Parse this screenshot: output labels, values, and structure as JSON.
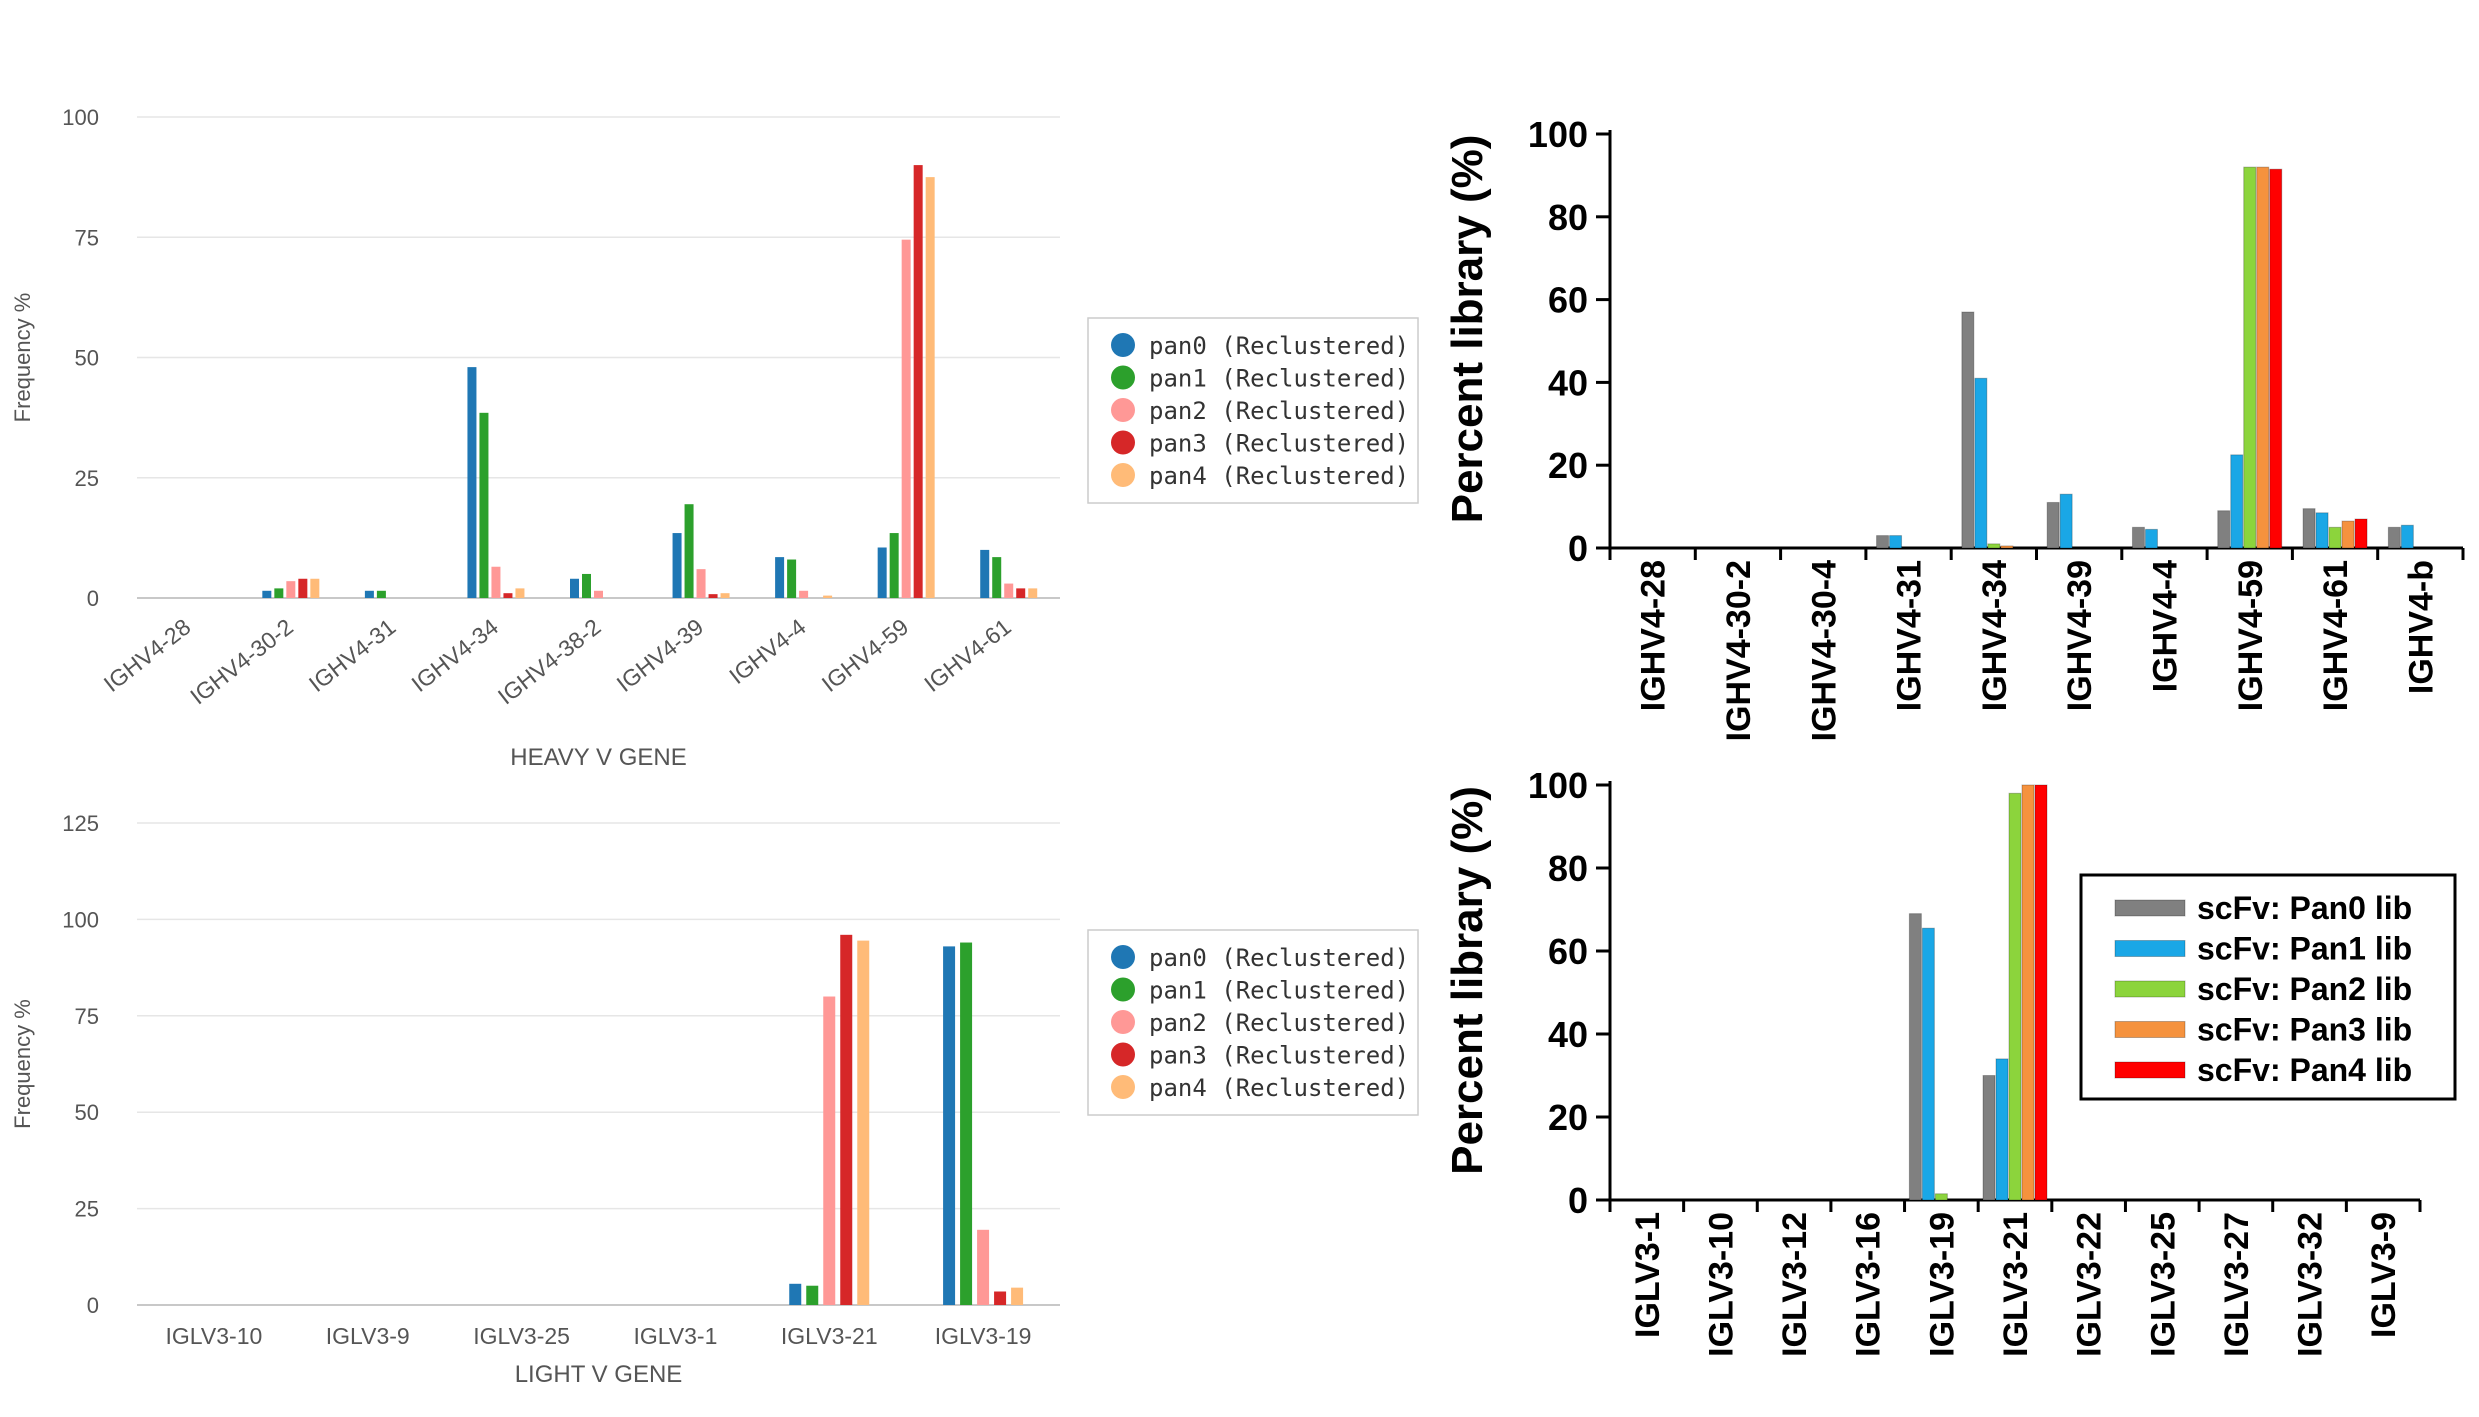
{
  "chart_data": [
    {
      "id": "heavy_left",
      "type": "bar",
      "title": "",
      "xlabel": "HEAVY V GENE",
      "ylabel": "Frequency %",
      "ylim": [
        0,
        100
      ],
      "yticks": [
        0,
        25,
        50,
        75,
        100
      ],
      "grid": true,
      "legend_placement": "right",
      "categories": [
        "IGHV4-28",
        "IGHV4-30-2",
        "IGHV4-31",
        "IGHV4-34",
        "IGHV4-38-2",
        "IGHV4-39",
        "IGHV4-4",
        "IGHV4-59",
        "IGHV4-61"
      ],
      "series": [
        {
          "name": "pan0 (Reclustered)",
          "color": "#1f77b4",
          "values": [
            0,
            1.5,
            1.5,
            48,
            4,
            13.5,
            8.5,
            10.5,
            10
          ]
        },
        {
          "name": "pan1 (Reclustered)",
          "color": "#2ca02c",
          "values": [
            0,
            2,
            1.5,
            38.5,
            5,
            19.5,
            8,
            13.5,
            8.5
          ]
        },
        {
          "name": "pan2 (Reclustered)",
          "color": "#ff9896",
          "values": [
            0,
            3.5,
            0,
            6.5,
            1.5,
            6,
            1.5,
            74.5,
            3
          ]
        },
        {
          "name": "pan3 (Reclustered)",
          "color": "#d62728",
          "values": [
            0,
            4,
            0,
            1,
            0,
            0.8,
            0,
            90,
            2
          ]
        },
        {
          "name": "pan4 (Reclustered)",
          "color": "#ffbb78",
          "values": [
            0,
            4,
            0,
            2,
            0,
            1,
            0.5,
            87.5,
            2
          ]
        }
      ]
    },
    {
      "id": "light_left",
      "type": "bar",
      "title": "",
      "xlabel": "LIGHT V GENE",
      "ylabel": "Frequency %",
      "ylim": [
        0,
        125
      ],
      "yticks": [
        0,
        25,
        50,
        75,
        100,
        125
      ],
      "grid": true,
      "legend_placement": "right",
      "categories": [
        "IGLV3-10",
        "IGLV3-9",
        "IGLV3-25",
        "IGLV3-1",
        "IGLV3-21",
        "IGLV3-19"
      ],
      "series": [
        {
          "name": "pan0 (Reclustered)",
          "color": "#1f77b4",
          "values": [
            0,
            0,
            0,
            0,
            5.5,
            93
          ]
        },
        {
          "name": "pan1 (Reclustered)",
          "color": "#2ca02c",
          "values": [
            0,
            0,
            0,
            0,
            5,
            94
          ]
        },
        {
          "name": "pan2 (Reclustered)",
          "color": "#ff9896",
          "values": [
            0,
            0,
            0,
            0,
            80,
            19.5
          ]
        },
        {
          "name": "pan3 (Reclustered)",
          "color": "#d62728",
          "values": [
            0,
            0,
            0,
            0,
            96,
            3.5
          ]
        },
        {
          "name": "pan4 (Reclustered)",
          "color": "#ffbb78",
          "values": [
            0,
            0,
            0,
            0,
            94.5,
            4.5
          ]
        }
      ]
    },
    {
      "id": "heavy_right",
      "type": "bar",
      "title": "",
      "xlabel": "",
      "ylabel": "Percent library (%)",
      "ylim": [
        0,
        100
      ],
      "yticks": [
        0,
        20,
        40,
        60,
        80,
        100
      ],
      "grid": false,
      "categories": [
        "IGHV4-28",
        "IGHV4-30-2",
        "IGHV4-30-4",
        "IGHV4-31",
        "IGHV4-34",
        "IGHV4-39",
        "IGHV4-4",
        "IGHV4-59",
        "IGHV4-61",
        "IGHV4-b"
      ],
      "series": [
        {
          "name": "scFv: Pan0 lib",
          "color": "#808080",
          "values": [
            0,
            0,
            0,
            3,
            57,
            11,
            5,
            9,
            9.5,
            5
          ]
        },
        {
          "name": "scFv: Pan1 lib",
          "color": "#1aa7e6",
          "values": [
            0,
            0,
            0,
            3,
            41,
            13,
            4.5,
            22.5,
            8.5,
            5.5
          ]
        },
        {
          "name": "scFv: Pan2 lib",
          "color": "#8cd43c",
          "values": [
            0,
            0,
            0,
            0,
            1,
            0,
            0,
            92,
            5,
            0
          ]
        },
        {
          "name": "scFv: Pan3 lib",
          "color": "#f5923e",
          "values": [
            0,
            0,
            0,
            0,
            0.5,
            0,
            0,
            92,
            6.5,
            0
          ]
        },
        {
          "name": "scFv: Pan4 lib",
          "color": "#ff0000",
          "values": [
            0,
            0,
            0,
            0,
            0,
            0,
            0,
            91.5,
            7,
            0
          ]
        }
      ]
    },
    {
      "id": "light_right",
      "type": "bar",
      "title": "",
      "xlabel": "",
      "ylabel": "Percent library (%)",
      "ylim": [
        0,
        100
      ],
      "yticks": [
        0,
        20,
        40,
        60,
        80,
        100
      ],
      "grid": false,
      "legend_placement": "top-right",
      "categories": [
        "IGLV3-1",
        "IGLV3-10",
        "IGLV3-12",
        "IGLV3-16",
        "IGLV3-19",
        "IGLV3-21",
        "IGLV3-22",
        "IGLV3-25",
        "IGLV3-27",
        "IGLV3-32",
        "IGLV3-9"
      ],
      "series": [
        {
          "name": "scFv: Pan0 lib",
          "color": "#808080",
          "values": [
            0,
            0,
            0,
            0,
            69,
            30,
            0,
            0,
            0,
            0,
            0
          ]
        },
        {
          "name": "scFv: Pan1 lib",
          "color": "#1aa7e6",
          "values": [
            0,
            0,
            0,
            0,
            65.5,
            34,
            0,
            0,
            0,
            0,
            0
          ]
        },
        {
          "name": "scFv: Pan2 lib",
          "color": "#8cd43c",
          "values": [
            0,
            0,
            0,
            0,
            1.5,
            98,
            0,
            0,
            0,
            0,
            0
          ]
        },
        {
          "name": "scFv: Pan3 lib",
          "color": "#f5923e",
          "values": [
            0,
            0,
            0,
            0,
            0,
            100,
            0,
            0,
            0,
            0,
            0
          ]
        },
        {
          "name": "scFv: Pan4 lib",
          "color": "#ff0000",
          "values": [
            0,
            0,
            0,
            0,
            0,
            100,
            0,
            0,
            0,
            0,
            0
          ]
        }
      ]
    }
  ]
}
